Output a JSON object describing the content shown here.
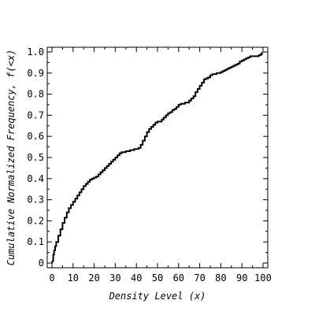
{
  "chart_data": {
    "type": "line",
    "title": "",
    "xlabel": "Density Level (x)",
    "ylabel": "Cumulative Normalized Frequency, f(<x)",
    "xlim": [
      0,
      100
    ],
    "ylim": [
      0,
      1.0
    ],
    "x_ticks": [
      0,
      10,
      20,
      30,
      40,
      50,
      60,
      70,
      80,
      90,
      100
    ],
    "x_tick_labels": [
      "0",
      "10",
      "20",
      "30",
      "40",
      "50",
      "60",
      "70",
      "80",
      "90",
      "100"
    ],
    "y_ticks": [
      0,
      0.1,
      0.2,
      0.3,
      0.4,
      0.5,
      0.6,
      0.7,
      0.8,
      0.9,
      1.0
    ],
    "y_tick_labels": [
      "0",
      "0.1",
      "0.2",
      "0.3",
      "0.4",
      "0.5",
      "0.6",
      "0.7",
      "0.8",
      "0.9",
      "1.0"
    ],
    "grid": false,
    "line_color": "#000000",
    "series": [
      {
        "x": [
          0.3,
          0.6,
          1,
          1.5,
          2,
          3,
          4,
          5,
          6,
          7,
          8,
          9,
          10,
          11,
          12,
          13,
          14,
          15,
          16,
          17,
          18,
          19,
          20,
          21,
          22,
          23,
          24,
          25,
          26,
          27,
          28,
          29,
          30,
          31,
          32,
          33,
          34,
          35,
          36,
          37,
          38,
          39,
          40,
          41,
          42,
          43,
          44,
          45,
          46,
          47,
          48,
          49,
          50,
          51,
          52,
          53,
          54,
          55,
          56,
          57,
          58,
          59,
          60,
          61,
          62,
          63,
          64,
          65,
          66,
          67,
          68,
          69,
          70,
          71,
          72,
          73,
          74,
          75,
          76,
          77,
          78,
          79,
          80,
          81,
          82,
          83,
          84,
          85,
          86,
          87,
          88,
          89,
          90,
          91,
          92,
          93,
          94,
          95,
          96,
          97,
          98,
          99,
          99.5
        ],
        "y": [
          0.01,
          0.04,
          0.06,
          0.08,
          0.1,
          0.13,
          0.16,
          0.19,
          0.215,
          0.24,
          0.26,
          0.275,
          0.29,
          0.305,
          0.32,
          0.335,
          0.35,
          0.365,
          0.375,
          0.385,
          0.395,
          0.4,
          0.405,
          0.41,
          0.42,
          0.43,
          0.44,
          0.45,
          0.46,
          0.47,
          0.48,
          0.49,
          0.5,
          0.51,
          0.52,
          0.525,
          0.525,
          0.53,
          0.53,
          0.535,
          0.535,
          0.54,
          0.54,
          0.545,
          0.56,
          0.58,
          0.6,
          0.62,
          0.635,
          0.645,
          0.655,
          0.665,
          0.67,
          0.67,
          0.68,
          0.69,
          0.7,
          0.71,
          0.715,
          0.725,
          0.73,
          0.74,
          0.75,
          0.755,
          0.755,
          0.76,
          0.76,
          0.77,
          0.78,
          0.79,
          0.81,
          0.825,
          0.84,
          0.855,
          0.87,
          0.875,
          0.88,
          0.89,
          0.895,
          0.895,
          0.9,
          0.9,
          0.905,
          0.91,
          0.915,
          0.92,
          0.925,
          0.93,
          0.935,
          0.94,
          0.945,
          0.955,
          0.96,
          0.965,
          0.97,
          0.975,
          0.98,
          0.98,
          0.98,
          0.98,
          0.985,
          0.99,
          1.0
        ]
      }
    ]
  }
}
